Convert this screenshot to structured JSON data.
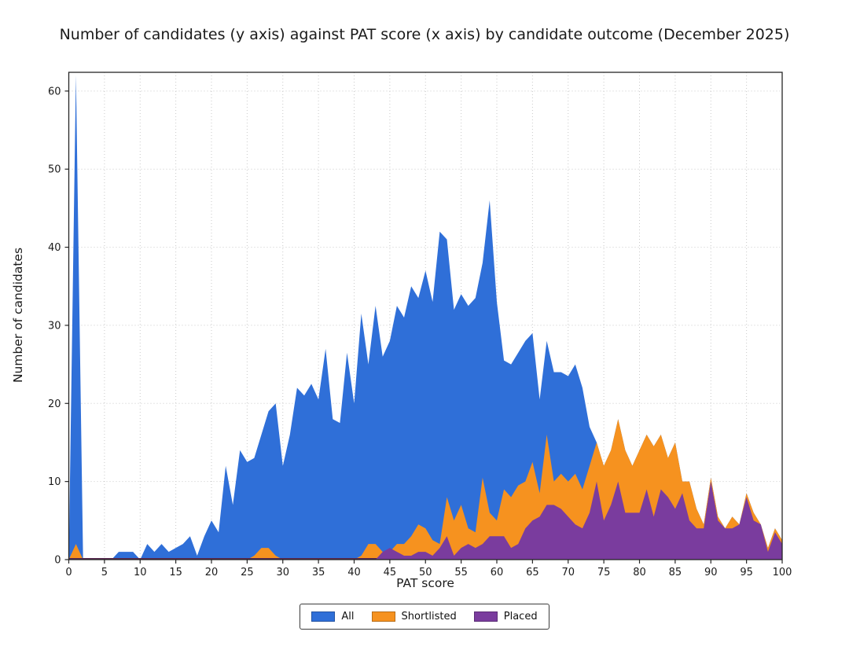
{
  "title": "Number of candidates (y axis) against PAT score (x axis) by candidate outcome (December 2025)",
  "legend": {
    "items": [
      {
        "label": "All",
        "color": "#2F6FD8"
      },
      {
        "label": "Shortlisted",
        "color": "#F6921F"
      },
      {
        "label": "Placed",
        "color": "#7A3C9E"
      }
    ]
  },
  "chart_data": {
    "type": "area",
    "title": "Number of candidates (y axis) against PAT score (x axis) by candidate outcome (December 2025)",
    "xlabel": "PAT score",
    "ylabel": "Number of candidates",
    "xlim": [
      0,
      100
    ],
    "ylim": [
      0,
      62.4
    ],
    "x_ticks": [
      0,
      5,
      10,
      15,
      20,
      25,
      30,
      35,
      40,
      45,
      50,
      55,
      60,
      65,
      70,
      75,
      80,
      85,
      90,
      95,
      100
    ],
    "y_ticks": [
      0,
      10,
      20,
      30,
      40,
      50,
      60
    ],
    "grid": true,
    "grid_style": "dotted",
    "legend_position": "bottom-center",
    "x_start": 0,
    "x_step": 1,
    "baseline_color": "#5A2A52",
    "series": [
      {
        "name": "All",
        "color": "#2F6FD8",
        "values": [
          0,
          62,
          0,
          0,
          0,
          0,
          0,
          1,
          1,
          1,
          0,
          2,
          1,
          2,
          1,
          1.5,
          2,
          3,
          0.5,
          3,
          5,
          3.5,
          12,
          7,
          14,
          12.5,
          13,
          16,
          19,
          20,
          12,
          16,
          22,
          21,
          22.5,
          20.5,
          27,
          18,
          17.5,
          26.5,
          20,
          31.5,
          25,
          32.5,
          26,
          28,
          32.5,
          31,
          35,
          33.5,
          37,
          33,
          42,
          41,
          32,
          34,
          32.5,
          33.5,
          38,
          46,
          33,
          25.5,
          25,
          26.5,
          28,
          29,
          20.5,
          28,
          24,
          24,
          23.5,
          25,
          22,
          17,
          15,
          12,
          14,
          18,
          14,
          12,
          14,
          16,
          14.5,
          16,
          13,
          15,
          10,
          10,
          6.5,
          4.5,
          10.5,
          5.5,
          4,
          5.5,
          4.5,
          8.5,
          6,
          4.5,
          1.5,
          4,
          2.5
        ]
      },
      {
        "name": "Shortlisted",
        "color": "#F6921F",
        "values": [
          0,
          2,
          0,
          0,
          0,
          0,
          0,
          0,
          0,
          0,
          0,
          0,
          0,
          0,
          0,
          0,
          0,
          0,
          0,
          0,
          0,
          0,
          0,
          0,
          0,
          0,
          0.5,
          1.5,
          1.5,
          0.5,
          0,
          0,
          0,
          0,
          0,
          0,
          0,
          0,
          0,
          0,
          0,
          0.5,
          2,
          2,
          1,
          1,
          2,
          2,
          3,
          4.5,
          4,
          2.5,
          2,
          8,
          5,
          7,
          4,
          3.5,
          10.5,
          6,
          5,
          9,
          8,
          9.5,
          10,
          12.5,
          8.5,
          16,
          10,
          11,
          10,
          11,
          9,
          12,
          15,
          12,
          14,
          18,
          14,
          12,
          14,
          16,
          14.5,
          16,
          13,
          15,
          10,
          10,
          6.5,
          4.5,
          10.5,
          5.5,
          4,
          5.5,
          4.5,
          8.5,
          6,
          4.5,
          1.5,
          4,
          2.5
        ]
      },
      {
        "name": "Placed",
        "color": "#7A3C9E",
        "values": [
          0,
          0,
          0,
          0,
          0,
          0,
          0,
          0,
          0,
          0,
          0,
          0,
          0,
          0,
          0,
          0,
          0,
          0,
          0,
          0,
          0,
          0,
          0,
          0,
          0,
          0,
          0,
          0,
          0,
          0,
          0,
          0,
          0,
          0,
          0,
          0,
          0,
          0,
          0,
          0,
          0,
          0,
          0,
          0,
          1,
          1.5,
          1,
          0.5,
          0.5,
          1,
          1,
          0.5,
          1.5,
          3,
          0.5,
          1.5,
          2,
          1.5,
          2,
          3,
          3,
          3,
          1.5,
          2,
          4,
          5,
          5.5,
          7,
          7,
          6.5,
          5.5,
          4.5,
          4,
          6,
          10,
          5,
          7,
          10,
          6,
          6,
          6,
          9,
          5.5,
          9,
          8,
          6.5,
          8.5,
          5,
          4,
          4,
          10,
          5,
          4,
          4,
          4.5,
          8,
          5,
          4.5,
          1,
          3.5,
          2
        ]
      }
    ]
  }
}
